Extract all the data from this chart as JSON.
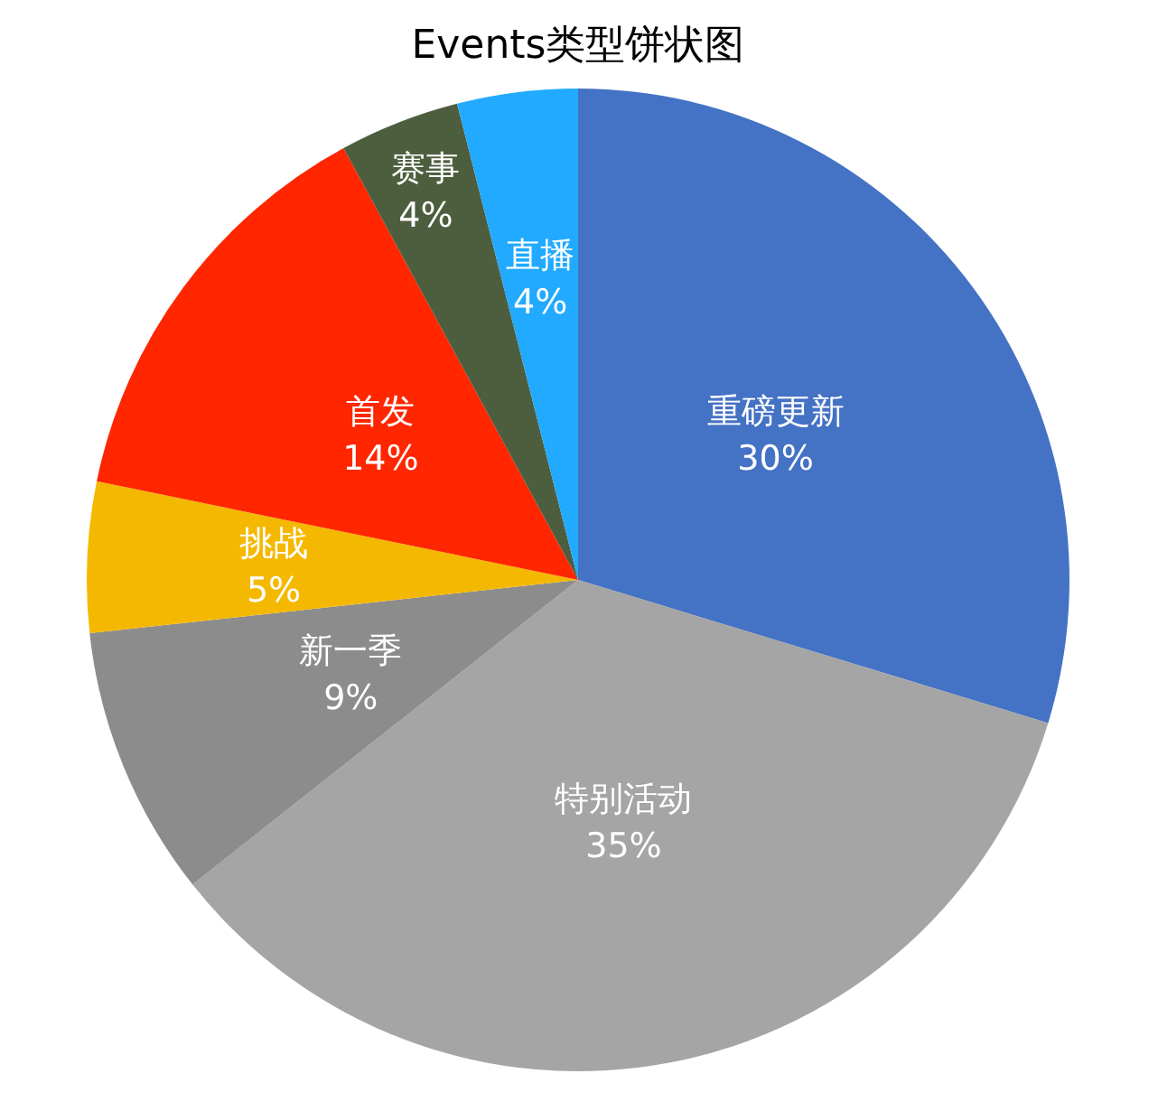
{
  "chart_data": {
    "type": "pie",
    "title": "Events类型饼状图",
    "categories": [
      "重磅更新",
      "特别活动",
      "新一季",
      "挑战",
      "首发",
      "赛事",
      "直播"
    ],
    "values": [
      30,
      35,
      9,
      5,
      14,
      4,
      4
    ],
    "value_labels": [
      "30%",
      "35%",
      "9%",
      "5%",
      "14%",
      "4%",
      "4%"
    ],
    "colors": [
      "#4472c4",
      "#a5a5a5",
      "#8c8c8c",
      "#f5b800",
      "#ff2600",
      "#4d5e3e",
      "#21aaff"
    ],
    "legend": false
  }
}
